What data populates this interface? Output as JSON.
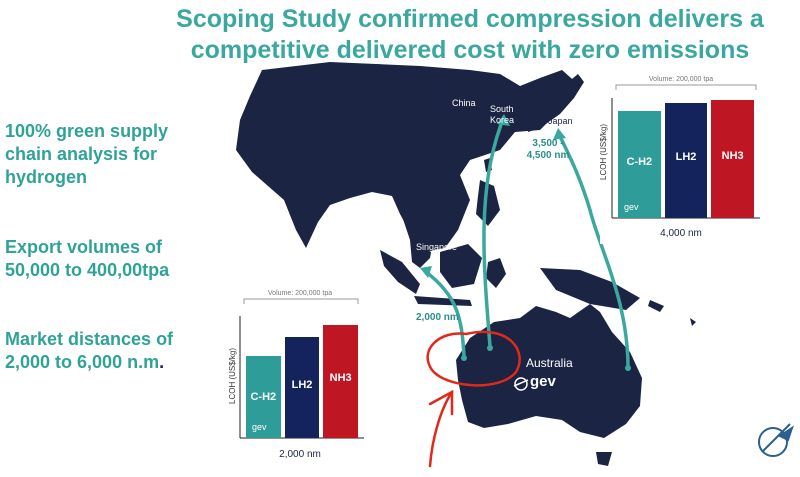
{
  "title": "Scoping Study confirmed compression delivers a competitive delivered cost with zero emissions",
  "bullets": [
    {
      "text": "100% green supply chain analysis for hydrogen"
    },
    {
      "text": "Export volumes of 50,000 to 400,00tpa"
    },
    {
      "text": "Market distances of 2,000 to 6,000 n.m",
      "suffix": "."
    }
  ],
  "map": {
    "labels": {
      "china": "China",
      "south_korea": "South Korea",
      "japan": "Japan",
      "singapore": "Singapore",
      "australia": "Australia"
    },
    "distances": {
      "short": "2,000 nm",
      "long": "3,500 - 4,500 nm"
    },
    "logo_text": "gev",
    "colors": {
      "land": "#1b2442",
      "route": "#3aa89e",
      "annotation": "#e0291b"
    }
  },
  "chart_data": [
    {
      "type": "bar",
      "title": "Volume: 200,000 tpa",
      "xlabel": "2,000 nm",
      "ylabel": "LCOH (US$/kg)",
      "categories": [
        "C-H2",
        "LH2",
        "NH3"
      ],
      "values": [
        0.67,
        0.83,
        0.93
      ],
      "colors": [
        "#2e9c98",
        "#14235c",
        "#be1622"
      ],
      "logo": "gev"
    },
    {
      "type": "bar",
      "title": "Volume: 200,000 tpa",
      "xlabel": "4,000 nm",
      "ylabel": "LCOH (US$/kg)",
      "categories": [
        "C-H2",
        "LH2",
        "NH3"
      ],
      "values": [
        0.89,
        0.96,
        0.98
      ],
      "colors": [
        "#2e9c98",
        "#14235c",
        "#be1622"
      ],
      "logo": "gev"
    }
  ]
}
